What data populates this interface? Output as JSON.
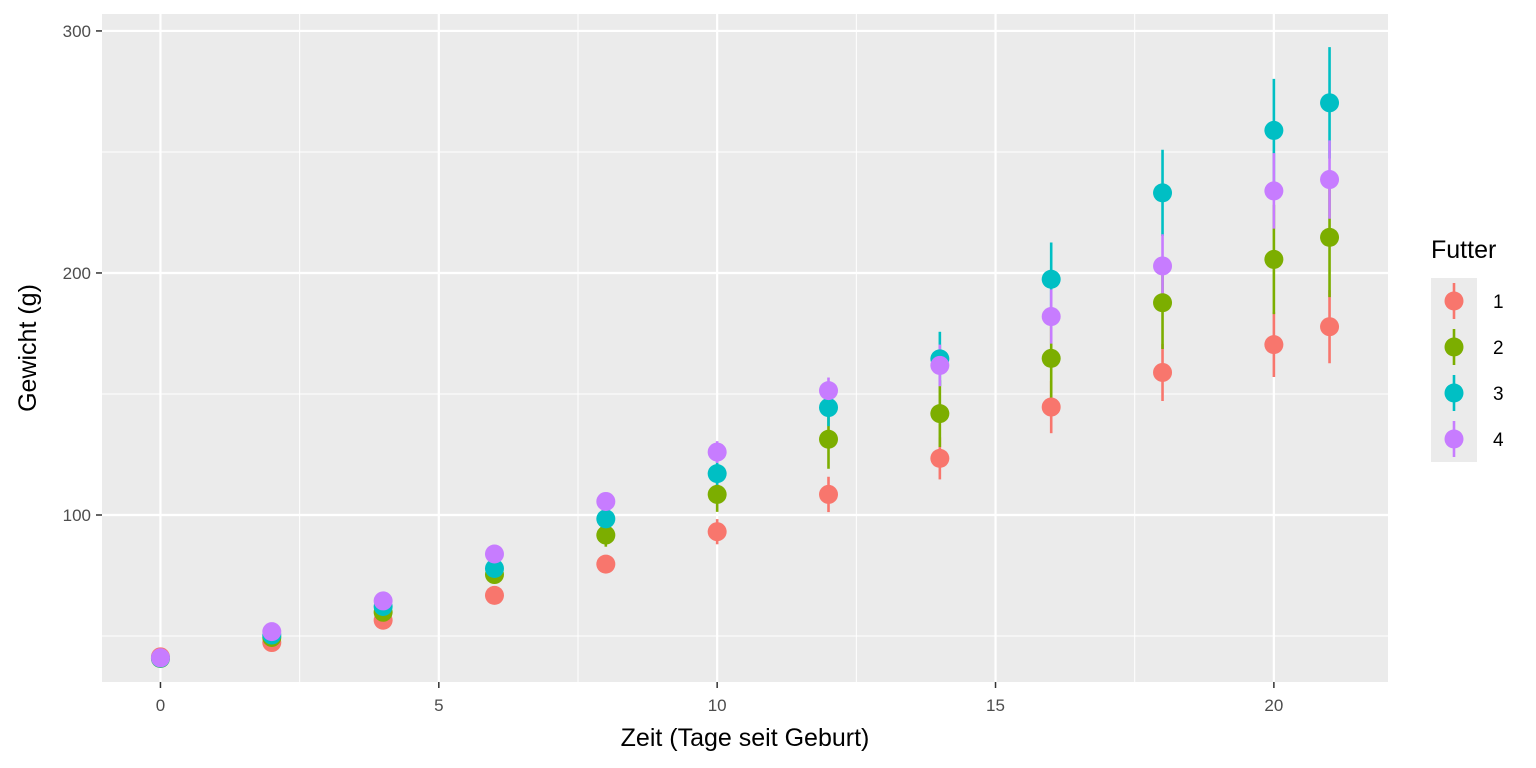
{
  "chart_data": {
    "type": "scatter",
    "title": "",
    "xlabel": "Zeit (Tage seit Geburt)",
    "ylabel": "Gewicht (g)",
    "xlim": [
      -1.05,
      22.05
    ],
    "ylim": [
      31,
      307
    ],
    "x_ticks": [
      0,
      5,
      10,
      15,
      20
    ],
    "y_ticks": [
      100,
      200,
      300
    ],
    "grid": true,
    "legend": {
      "title": "Futter",
      "position": "right"
    },
    "x": [
      0,
      2,
      4,
      6,
      8,
      10,
      12,
      14,
      16,
      18,
      20,
      21
    ],
    "series": [
      {
        "name": "1",
        "color": "#F8766D",
        "mean": [
          41.4,
          47.3,
          56.5,
          66.8,
          79.7,
          93.1,
          108.5,
          123.4,
          144.6,
          158.9,
          170.4,
          177.8
        ],
        "lower": [
          40.6,
          45.9,
          54.6,
          63.8,
          76.1,
          87.9,
          101.2,
          114.7,
          133.8,
          147.1,
          157.0,
          162.7
        ],
        "upper": [
          42.2,
          48.7,
          58.4,
          69.8,
          83.3,
          98.3,
          115.8,
          132.1,
          155.4,
          170.7,
          183.8,
          192.9
        ]
      },
      {
        "name": "2",
        "color": "#7CAE00",
        "mean": [
          40.7,
          49.4,
          59.8,
          75.4,
          91.7,
          108.5,
          131.3,
          141.9,
          164.7,
          187.7,
          205.6,
          214.7
        ],
        "lower": [
          40.2,
          48.4,
          57.7,
          72.0,
          86.9,
          101.3,
          119.1,
          128.1,
          148.1,
          168.6,
          183.0,
          190.0
        ],
        "upper": [
          41.2,
          50.4,
          61.9,
          78.8,
          96.5,
          115.7,
          143.5,
          155.7,
          181.3,
          206.8,
          228.2,
          239.4
        ]
      },
      {
        "name": "3",
        "color": "#00BFC4",
        "mean": [
          40.8,
          50.4,
          62.2,
          77.9,
          98.4,
          117.1,
          144.4,
          164.5,
          197.4,
          233.1,
          258.9,
          270.3
        ],
        "lower": [
          40.3,
          49.5,
          60.3,
          74.7,
          93.5,
          110.9,
          136.7,
          153.3,
          182.2,
          215.3,
          237.6,
          247.3
        ],
        "upper": [
          41.3,
          51.3,
          64.1,
          81.1,
          103.3,
          123.3,
          152.1,
          175.7,
          212.6,
          250.9,
          280.2,
          293.3
        ]
      },
      {
        "name": "4",
        "color": "#C77CFF",
        "mean": [
          41.0,
          51.8,
          64.5,
          83.9,
          105.6,
          126.0,
          151.4,
          161.8,
          182.0,
          202.9,
          233.9,
          238.6
        ],
        "lower": [
          40.4,
          51.0,
          63.1,
          81.7,
          102.3,
          121.5,
          146.0,
          153.2,
          170.8,
          189.8,
          218.3,
          222.4
        ],
        "upper": [
          41.6,
          52.6,
          65.9,
          86.1,
          108.9,
          130.5,
          156.8,
          170.4,
          193.2,
          216.0,
          249.5,
          254.8
        ]
      }
    ]
  }
}
